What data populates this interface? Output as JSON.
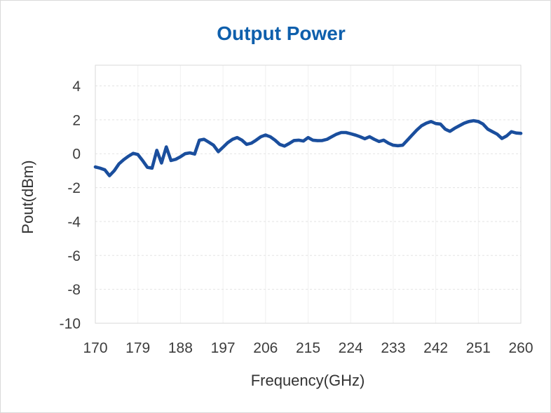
{
  "chart": {
    "title_color": "#0e5fac",
    "line_color": "#1a4e9d",
    "grid_color": "#e3e3e3",
    "border_color": "#d9d9d9"
  },
  "chart_data": {
    "type": "line",
    "title": "Output Power",
    "xlabel": "Frequency(GHz)",
    "ylabel": "Pout(dBm)",
    "x_ticks": [
      170,
      179,
      188,
      197,
      206,
      215,
      224,
      233,
      242,
      251,
      260
    ],
    "y_ticks": [
      4,
      2,
      0,
      -2,
      -4,
      -6,
      -8,
      -10
    ],
    "xlim": [
      170,
      260
    ],
    "ylim": [
      -10,
      5.22
    ],
    "grid": true,
    "legend_position": "none",
    "series": [
      {
        "name": "Pout",
        "x": [
          170,
          171,
          172,
          173,
          174,
          175,
          176,
          177,
          178,
          179,
          180,
          181,
          182,
          183,
          184,
          185,
          186,
          187,
          188,
          189,
          190,
          191,
          192,
          193,
          194,
          195,
          196,
          197,
          198,
          199,
          200,
          201,
          202,
          203,
          204,
          205,
          206,
          207,
          208,
          209,
          210,
          211,
          212,
          213,
          214,
          215,
          216,
          217,
          218,
          219,
          220,
          221,
          222,
          223,
          224,
          225,
          226,
          227,
          228,
          229,
          230,
          231,
          232,
          233,
          234,
          235,
          236,
          237,
          238,
          239,
          240,
          241,
          242,
          243,
          244,
          245,
          246,
          247,
          248,
          249,
          250,
          251,
          252,
          253,
          254,
          255,
          256,
          257,
          258,
          259,
          260
        ],
        "y": [
          -0.78,
          -0.85,
          -0.95,
          -1.3,
          -1.0,
          -0.6,
          -0.35,
          -0.15,
          0.02,
          -0.05,
          -0.4,
          -0.8,
          -0.85,
          0.2,
          -0.55,
          0.4,
          -0.4,
          -0.33,
          -0.18,
          0.0,
          0.05,
          -0.02,
          0.8,
          0.85,
          0.68,
          0.5,
          0.12,
          0.38,
          0.65,
          0.85,
          0.95,
          0.8,
          0.55,
          0.62,
          0.8,
          1.0,
          1.1,
          1.0,
          0.8,
          0.55,
          0.45,
          0.6,
          0.78,
          0.8,
          0.75,
          0.95,
          0.8,
          0.77,
          0.78,
          0.85,
          1.0,
          1.15,
          1.25,
          1.25,
          1.18,
          1.1,
          1.0,
          0.88,
          1.0,
          0.85,
          0.72,
          0.8,
          0.62,
          0.5,
          0.47,
          0.5,
          0.8,
          1.1,
          1.4,
          1.65,
          1.8,
          1.9,
          1.78,
          1.75,
          1.45,
          1.32,
          1.5,
          1.65,
          1.8,
          1.9,
          1.95,
          1.9,
          1.75,
          1.45,
          1.3,
          1.15,
          0.9,
          1.05,
          1.3,
          1.22,
          1.2
        ]
      }
    ]
  }
}
